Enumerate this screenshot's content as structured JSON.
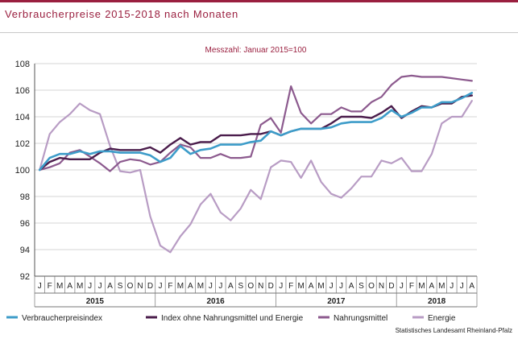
{
  "header": {
    "title": "Verbraucherpreise 2015-2018 nach Monaten"
  },
  "source": "Statistisches Landesamt Rheinland-Pfalz",
  "chart_data": {
    "type": "line",
    "subtitle": "Messzahl: Januar 2015=100",
    "ylim": [
      92,
      108
    ],
    "yticks": [
      92,
      94,
      96,
      98,
      100,
      102,
      104,
      106,
      108
    ],
    "grid": "horizontal",
    "legend_position": "bottom",
    "years": [
      {
        "label": "2015",
        "months": 12
      },
      {
        "label": "2016",
        "months": 12
      },
      {
        "label": "2017",
        "months": 12
      },
      {
        "label": "2018",
        "months": 8
      }
    ],
    "month_letters": [
      "J",
      "F",
      "M",
      "A",
      "M",
      "J",
      "J",
      "A",
      "S",
      "O",
      "N",
      "D",
      "J",
      "F",
      "M",
      "A",
      "M",
      "J",
      "J",
      "A",
      "S",
      "O",
      "N",
      "D",
      "J",
      "F",
      "M",
      "A",
      "M",
      "J",
      "J",
      "A",
      "S",
      "O",
      "N",
      "D",
      "J",
      "F",
      "M",
      "A",
      "M",
      "J",
      "J",
      "A"
    ],
    "series": [
      {
        "name": "Verbraucherpreisindex",
        "color": "#3d9cc9",
        "width": 2.6,
        "values": [
          100.0,
          100.9,
          101.2,
          101.2,
          101.4,
          101.2,
          101.4,
          101.4,
          101.3,
          101.3,
          101.3,
          101.1,
          100.6,
          100.9,
          101.8,
          101.2,
          101.5,
          101.6,
          101.9,
          101.9,
          101.9,
          102.1,
          102.2,
          102.9,
          102.6,
          102.9,
          103.1,
          103.1,
          103.1,
          103.2,
          103.5,
          103.6,
          103.6,
          103.6,
          103.9,
          104.5,
          104.0,
          104.3,
          104.7,
          104.7,
          105.1,
          105.1,
          105.4,
          105.8
        ]
      },
      {
        "name": "Index ohne Nahrungsmittel und Energie",
        "color": "#4a1c4b",
        "width": 2.4,
        "values": [
          100.0,
          100.6,
          100.9,
          100.8,
          100.8,
          100.8,
          101.3,
          101.6,
          101.5,
          101.5,
          101.5,
          101.7,
          101.3,
          101.9,
          102.4,
          101.9,
          102.1,
          102.1,
          102.6,
          102.6,
          102.6,
          102.7,
          102.7,
          102.9,
          102.6,
          102.9,
          103.1,
          103.1,
          103.1,
          103.5,
          104.0,
          104.0,
          104.0,
          103.9,
          104.3,
          104.8,
          103.9,
          104.4,
          104.8,
          104.7,
          105.0,
          105.0,
          105.5,
          105.6
        ]
      },
      {
        "name": "Nahrungsmittel",
        "color": "#8c5a8e",
        "width": 2.2,
        "values": [
          100.0,
          100.2,
          100.5,
          101.3,
          101.5,
          101.0,
          100.5,
          99.9,
          100.6,
          100.8,
          100.7,
          100.4,
          100.6,
          101.3,
          101.9,
          101.7,
          100.9,
          100.9,
          101.2,
          100.9,
          100.9,
          101.0,
          103.4,
          103.9,
          102.8,
          106.3,
          104.3,
          103.5,
          104.2,
          104.2,
          104.7,
          104.4,
          104.4,
          105.1,
          105.5,
          106.4,
          107.0,
          107.1,
          107.0,
          107.0,
          107.0,
          106.9,
          106.8,
          106.7
        ]
      },
      {
        "name": "Energie",
        "color": "#b89cc4",
        "width": 2.2,
        "values": [
          100.0,
          102.7,
          103.6,
          104.2,
          105.0,
          104.5,
          104.2,
          101.8,
          99.9,
          99.8,
          100.0,
          96.5,
          94.3,
          93.8,
          95.0,
          95.9,
          97.4,
          98.2,
          96.8,
          96.2,
          97.1,
          98.5,
          97.8,
          100.2,
          100.7,
          100.6,
          99.4,
          100.7,
          99.1,
          98.2,
          97.9,
          98.6,
          99.5,
          99.5,
          100.7,
          100.5,
          100.9,
          99.9,
          99.9,
          101.2,
          103.5,
          104.0,
          104.0,
          105.2
        ]
      }
    ]
  }
}
